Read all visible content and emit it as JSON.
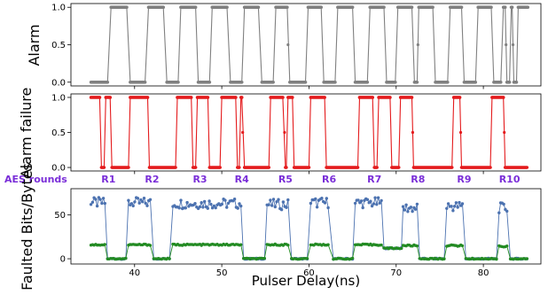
{
  "chart_data": [
    {
      "type": "line",
      "ylabel": "Alarm",
      "yticks": [
        "0.0",
        "0.5",
        "1.0"
      ],
      "ylim": [
        -0.05,
        1.05
      ],
      "xlim": [
        32.7,
        86.6
      ],
      "color": "#808080",
      "segments": [
        [
          35.0,
          36.9,
          0
        ],
        [
          37.3,
          39.1,
          1
        ],
        [
          39.5,
          41.2,
          0
        ],
        [
          41.6,
          43.3,
          1
        ],
        [
          43.7,
          45.0,
          0
        ],
        [
          45.3,
          47.0,
          1
        ],
        [
          47.3,
          48.6,
          0
        ],
        [
          48.9,
          50.6,
          1
        ],
        [
          51.0,
          52.3,
          0
        ],
        [
          52.6,
          54.2,
          1
        ],
        [
          54.6,
          55.9,
          0
        ],
        [
          56.2,
          57.5,
          1
        ],
        [
          57.8,
          59.6,
          0
        ],
        [
          59.9,
          61.4,
          1
        ],
        [
          61.7,
          63.0,
          0
        ],
        [
          63.3,
          65.0,
          1
        ],
        [
          65.3,
          66.7,
          0
        ],
        [
          67.0,
          68.6,
          1
        ],
        [
          68.9,
          69.9,
          0
        ],
        [
          70.2,
          71.8,
          1
        ],
        [
          72.1,
          72.4,
          0
        ],
        [
          72.6,
          74.2,
          1
        ],
        [
          74.5,
          75.9,
          0
        ],
        [
          76.2,
          77.5,
          1
        ],
        [
          77.8,
          79.1,
          0
        ],
        [
          79.4,
          80.9,
          1
        ],
        [
          81.2,
          82.0,
          0
        ],
        [
          82.3,
          82.5,
          1
        ],
        [
          82.7,
          83.0,
          0
        ],
        [
          83.2,
          83.3,
          1
        ],
        [
          83.5,
          83.8,
          0
        ],
        [
          84.0,
          85.1,
          1
        ]
      ],
      "mids": [
        [
          57.6,
          0.5
        ],
        [
          72.5,
          0.5
        ],
        [
          82.6,
          0.5
        ],
        [
          83.4,
          0.5
        ]
      ]
    },
    {
      "type": "line",
      "ylabel": "Alarm failure",
      "yticks": [
        "0.0",
        "0.5",
        "1.0"
      ],
      "ylim": [
        -0.05,
        1.05
      ],
      "xlim": [
        32.7,
        86.6
      ],
      "color": "#e41a1c",
      "segments": [
        [
          35.0,
          36.0,
          1
        ],
        [
          36.2,
          36.5,
          0
        ],
        [
          36.7,
          37.2,
          1
        ],
        [
          37.4,
          39.3,
          0
        ],
        [
          39.5,
          41.5,
          1
        ],
        [
          41.7,
          44.7,
          0
        ],
        [
          44.9,
          46.5,
          1
        ],
        [
          46.7,
          47.0,
          0
        ],
        [
          47.2,
          48.4,
          1
        ],
        [
          48.6,
          49.8,
          0
        ],
        [
          50.0,
          51.6,
          1
        ],
        [
          51.8,
          52.0,
          0
        ],
        [
          52.2,
          52.3,
          1
        ],
        [
          52.6,
          55.4,
          0
        ],
        [
          55.6,
          57.0,
          1
        ],
        [
          57.3,
          57.4,
          0
        ],
        [
          57.6,
          58.1,
          1
        ],
        [
          58.3,
          60.0,
          0
        ],
        [
          60.2,
          61.8,
          1
        ],
        [
          62.0,
          65.6,
          0
        ],
        [
          65.8,
          67.3,
          1
        ],
        [
          67.5,
          67.8,
          0
        ],
        [
          68.0,
          69.3,
          1
        ],
        [
          69.5,
          70.3,
          0
        ],
        [
          70.5,
          71.8,
          1
        ],
        [
          72.0,
          76.4,
          0
        ],
        [
          76.6,
          77.3,
          1
        ],
        [
          77.5,
          80.8,
          0
        ],
        [
          81.0,
          82.3,
          1
        ],
        [
          82.5,
          85.0,
          0
        ]
      ],
      "mids": [
        [
          52.4,
          0.5
        ],
        [
          57.2,
          0.5
        ],
        [
          71.9,
          0.5
        ],
        [
          77.4,
          0.5
        ],
        [
          82.4,
          0.5
        ]
      ]
    },
    {
      "type": "line",
      "ylabel": "Faulted Bits/Bytes",
      "xlabel": "Pulser Delay(ns)",
      "xticks": [
        "40",
        "50",
        "60",
        "70",
        "80"
      ],
      "yticks": [
        "0",
        "50"
      ],
      "ylim": [
        -6,
        80
      ],
      "xlim": [
        32.7,
        86.6
      ],
      "series": [
        {
          "color": "#4c72b0",
          "high": [
            [
              35.0,
              36.6,
              64
            ],
            [
              39.3,
              41.8,
              64
            ],
            [
              44.4,
              52.2,
              63
            ],
            [
              55.2,
              57.6,
              62
            ],
            [
              60.2,
              62.2,
              64
            ],
            [
              65.3,
              68.3,
              64
            ],
            [
              70.8,
              72.4,
              58
            ],
            [
              75.8,
              77.6,
              60
            ],
            [
              81.8,
              82.7,
              58
            ]
          ],
          "low": [
            [
              36.9,
              39.0,
              0
            ],
            [
              42.2,
              44.0,
              0
            ],
            [
              52.5,
              54.9,
              0
            ],
            [
              58.0,
              59.8,
              0
            ],
            [
              62.8,
              65.0,
              0
            ],
            [
              68.6,
              70.6,
              12
            ],
            [
              72.7,
              75.5,
              0
            ],
            [
              78.0,
              81.5,
              0
            ],
            [
              83.1,
              85.0,
              0
            ]
          ]
        },
        {
          "color": "#238b23",
          "high": [
            [
              35.0,
              36.6,
              16
            ],
            [
              39.3,
              41.8,
              16
            ],
            [
              44.4,
              52.2,
              16
            ],
            [
              55.2,
              57.6,
              16
            ],
            [
              60.2,
              62.2,
              16
            ],
            [
              65.3,
              68.3,
              16
            ],
            [
              70.8,
              72.4,
              15
            ],
            [
              75.8,
              77.6,
              15
            ],
            [
              81.8,
              82.7,
              14
            ]
          ],
          "low": [
            [
              36.9,
              39.0,
              0
            ],
            [
              42.2,
              44.0,
              0
            ],
            [
              52.5,
              54.9,
              0
            ],
            [
              58.0,
              59.8,
              0
            ],
            [
              62.8,
              65.0,
              0
            ],
            [
              68.6,
              70.6,
              12
            ],
            [
              72.7,
              75.5,
              0
            ],
            [
              78.0,
              81.5,
              0
            ],
            [
              83.1,
              85.0,
              0
            ]
          ]
        }
      ]
    }
  ],
  "aes_rounds": {
    "label": "AES rounds",
    "rounds": [
      {
        "name": "R1",
        "x": 37.0
      },
      {
        "name": "R2",
        "x": 42.0
      },
      {
        "name": "R3",
        "x": 47.5
      },
      {
        "name": "R4",
        "x": 52.3
      },
      {
        "name": "R5",
        "x": 57.3
      },
      {
        "name": "R6",
        "x": 62.3
      },
      {
        "name": "R7",
        "x": 67.5
      },
      {
        "name": "R8",
        "x": 72.5
      },
      {
        "name": "R9",
        "x": 77.8
      },
      {
        "name": "R10",
        "x": 83.0
      }
    ]
  }
}
